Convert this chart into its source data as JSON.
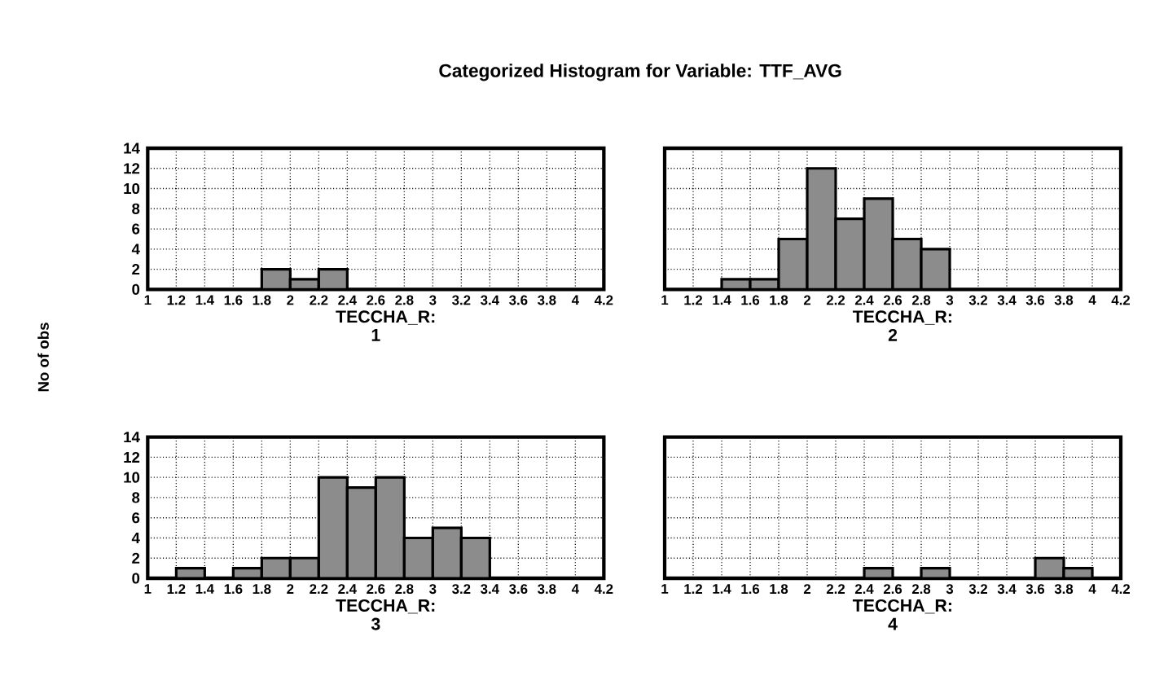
{
  "chart_data": [
    {
      "type": "histogram",
      "title": "Categorized Histogram for Variable: TTF_AVG",
      "ylabel": "No of obs",
      "xlabel": "TECCHA_R: 1",
      "bins": [
        1.0,
        1.2,
        1.4,
        1.6,
        1.8,
        2.0,
        2.2,
        2.4,
        2.6,
        2.8,
        3.0,
        3.2,
        3.4,
        3.6,
        3.8,
        4.0,
        4.2
      ],
      "values": [
        0,
        0,
        0,
        0,
        2,
        1,
        2,
        0,
        0,
        0,
        0,
        0,
        0,
        0,
        0,
        0
      ],
      "color": "#8c8c8c",
      "xlim": [
        1,
        4.2
      ],
      "ylim": [
        0,
        14
      ],
      "xticks": [
        1,
        1.2,
        1.4,
        1.6,
        1.8,
        2,
        2.2,
        2.4,
        2.6,
        2.8,
        3,
        3.2,
        3.4,
        3.6,
        3.8,
        4,
        4.2
      ],
      "yticks": [
        0,
        2,
        4,
        6,
        8,
        10,
        12,
        14
      ],
      "grid": true
    },
    {
      "type": "histogram",
      "xlabel": "TECCHA_R: 2",
      "bins": [
        1.0,
        1.2,
        1.4,
        1.6,
        1.8,
        2.0,
        2.2,
        2.4,
        2.6,
        2.8,
        3.0,
        3.2,
        3.4,
        3.6,
        3.8,
        4.0,
        4.2
      ],
      "values": [
        0,
        0,
        1,
        1,
        5,
        12,
        7,
        9,
        5,
        4,
        0,
        0,
        0,
        0,
        0,
        0
      ],
      "color": "#8c8c8c",
      "xlim": [
        1,
        4.2
      ],
      "ylim": [
        0,
        14
      ],
      "xticks": [
        1,
        1.2,
        1.4,
        1.6,
        1.8,
        2,
        2.2,
        2.4,
        2.6,
        2.8,
        3,
        3.2,
        3.4,
        3.6,
        3.8,
        4,
        4.2
      ],
      "yticks": [
        0,
        2,
        4,
        6,
        8,
        10,
        12,
        14
      ],
      "grid": true,
      "tick_labels": "x"
    },
    {
      "type": "histogram",
      "xlabel": "TECCHA_R: 3",
      "bins": [
        1.0,
        1.2,
        1.4,
        1.6,
        1.8,
        2.0,
        2.2,
        2.4,
        2.6,
        2.8,
        3.0,
        3.2,
        3.4,
        3.6,
        3.8,
        4.0,
        4.2
      ],
      "values": [
        0,
        1,
        0,
        1,
        2,
        2,
        10,
        9,
        10,
        4,
        5,
        4,
        0,
        0,
        0,
        0
      ],
      "color": "#8c8c8c",
      "xlim": [
        1,
        4.2
      ],
      "ylim": [
        0,
        14
      ],
      "xticks": [
        1,
        1.2,
        1.4,
        1.6,
        1.8,
        2,
        2.2,
        2.4,
        2.6,
        2.8,
        3,
        3.2,
        3.4,
        3.6,
        3.8,
        4,
        4.2
      ],
      "yticks": [
        0,
        2,
        4,
        6,
        8,
        10,
        12,
        14
      ],
      "grid": true
    },
    {
      "type": "histogram",
      "xlabel": "TECCHA_R: 4",
      "bins": [
        1.0,
        1.2,
        1.4,
        1.6,
        1.8,
        2.0,
        2.2,
        2.4,
        2.6,
        2.8,
        3.0,
        3.2,
        3.4,
        3.6,
        3.8,
        4.0,
        4.2
      ],
      "values": [
        0,
        0,
        0,
        0,
        0,
        0,
        0,
        1,
        0,
        1,
        0,
        0,
        0,
        2,
        1,
        0
      ],
      "color": "#8c8c8c",
      "xlim": [
        1,
        4.2
      ],
      "ylim": [
        0,
        14
      ],
      "xticks": [
        1,
        1.2,
        1.4,
        1.6,
        1.8,
        2,
        2.2,
        2.4,
        2.6,
        2.8,
        3,
        3.2,
        3.4,
        3.6,
        3.8,
        4,
        4.2
      ],
      "yticks": [
        0,
        2,
        4,
        6,
        8,
        10,
        12,
        14
      ],
      "grid": true,
      "tick_labels": "x"
    }
  ]
}
